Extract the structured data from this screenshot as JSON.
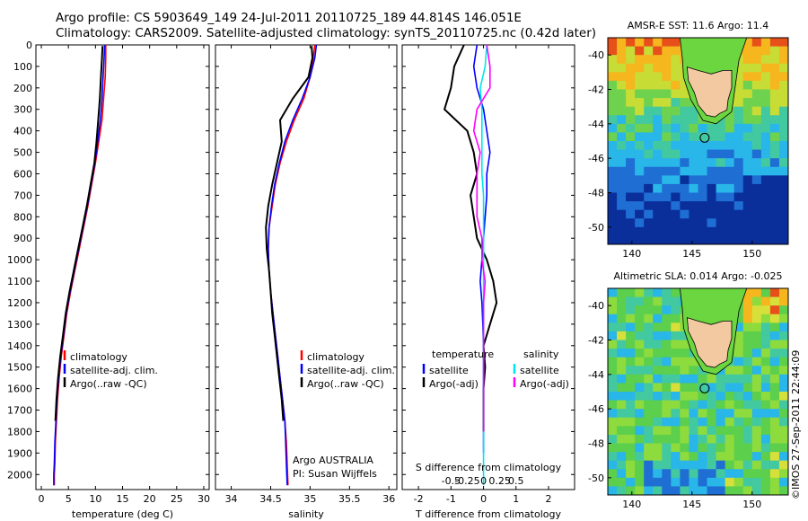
{
  "title_line1": "Argo profile: CS 5903649_149 24-Jul-2011 20110725_189 44.814S 146.051E",
  "title_line2": "Climatology: CARS2009. Satellite-adjusted climatology: synTS_20110725.nc (0.42d later)",
  "side_label": "©IMOS 27-Sep-2011 22:44:09",
  "colors": {
    "climatology": "#ff0000",
    "satellite": "#0000ff",
    "argo": "#000000",
    "salinity_satellite": "#00e5ee",
    "salinity_argo": "#ff00ff"
  },
  "chart_data": [
    {
      "type": "line",
      "panel": "temperature",
      "xlabel": "temperature (deg C)",
      "xlim": [
        -1,
        31
      ],
      "xticks": [
        0,
        5,
        10,
        15,
        20,
        25,
        30
      ],
      "xtick_labels": [
        "0",
        "5",
        "10",
        "15",
        "20",
        "25",
        "30"
      ],
      "ylim": [
        0,
        2070
      ],
      "y_inverted": true,
      "yticks": [
        0,
        100,
        200,
        300,
        400,
        500,
        600,
        700,
        800,
        900,
        1000,
        1100,
        1200,
        1300,
        1400,
        1500,
        1600,
        1700,
        1800,
        1900,
        2000
      ],
      "ytick_labels": [
        "0",
        "100",
        "200",
        "300",
        "400",
        "500",
        "600",
        "700",
        "800",
        "900",
        "1000",
        "1100",
        "1200",
        "1300",
        "1400",
        "1500",
        "1600",
        "1700",
        "1800",
        "1900",
        "2000"
      ],
      "legend": [
        "climatology",
        "satellite-adj. clim.",
        "Argo(..raw -QC)"
      ],
      "legend_position": "lower-center",
      "series": [
        {
          "name": "climatology",
          "color": "#ff0000",
          "x": [
            11.9,
            11.9,
            11.8,
            11.5,
            11.2,
            10.6,
            10.0,
            9.3,
            8.6,
            7.8,
            7.0,
            6.2,
            5.4,
            4.7,
            4.2,
            3.7,
            3.3,
            3.0,
            2.8,
            2.6,
            2.5,
            2.4,
            2.4
          ],
          "y": [
            0,
            60,
            150,
            250,
            350,
            450,
            550,
            650,
            750,
            850,
            950,
            1050,
            1150,
            1250,
            1350,
            1450,
            1550,
            1650,
            1750,
            1850,
            1950,
            2000,
            2050
          ]
        },
        {
          "name": "satellite-adj. clim.",
          "color": "#0000ff",
          "x": [
            11.7,
            11.6,
            11.4,
            11.2,
            10.9,
            10.4,
            9.9,
            9.2,
            8.5,
            7.7,
            6.9,
            6.1,
            5.3,
            4.6,
            4.1,
            3.6,
            3.2,
            2.9,
            2.7,
            2.5,
            2.4,
            2.3,
            2.3
          ],
          "y": [
            0,
            60,
            150,
            250,
            350,
            450,
            550,
            650,
            750,
            850,
            950,
            1050,
            1150,
            1250,
            1350,
            1450,
            1550,
            1650,
            1750,
            1850,
            1950,
            2000,
            2050
          ]
        },
        {
          "name": "Argo(..raw -QC)",
          "color": "#000000",
          "x": [
            11.3,
            11.2,
            11.0,
            10.8,
            10.5,
            10.2,
            9.8,
            9.1,
            8.4,
            7.6,
            6.8,
            6.0,
            5.2,
            4.5,
            4.0,
            3.5,
            3.1,
            2.8,
            2.6
          ],
          "y": [
            5,
            60,
            150,
            250,
            350,
            450,
            550,
            650,
            750,
            850,
            950,
            1050,
            1150,
            1250,
            1350,
            1450,
            1550,
            1650,
            1750
          ]
        }
      ]
    },
    {
      "type": "line",
      "panel": "salinity",
      "xlabel": "salinity",
      "xlim": [
        33.8,
        36.1
      ],
      "xticks": [
        34,
        34.5,
        35,
        35.5,
        36
      ],
      "xtick_labels": [
        "34",
        "34.5",
        "35",
        "35.5",
        "36"
      ],
      "ylim": [
        0,
        2070
      ],
      "y_inverted": true,
      "legend": [
        "climatology",
        "satellite-adj. clim.",
        "Argo(..raw -QC)"
      ],
      "legend_position": "lower-center",
      "annotation_lines": [
        "Argo AUSTRALIA",
        "PI: Susan Wijffels"
      ],
      "series": [
        {
          "name": "climatology",
          "color": "#ff0000",
          "x": [
            35.06,
            35.04,
            35.0,
            34.92,
            34.8,
            34.7,
            34.62,
            34.56,
            34.52,
            34.48,
            34.47,
            34.48,
            34.5,
            34.53,
            34.56,
            34.59,
            34.62,
            34.65,
            34.68,
            34.7,
            34.71,
            34.72
          ],
          "y": [
            0,
            60,
            150,
            250,
            350,
            450,
            550,
            650,
            750,
            850,
            950,
            1050,
            1150,
            1250,
            1350,
            1450,
            1550,
            1650,
            1750,
            1850,
            1950,
            2050
          ]
        },
        {
          "name": "satellite-adj. clim.",
          "color": "#0000ff",
          "x": [
            35.08,
            35.06,
            35.0,
            34.9,
            34.78,
            34.68,
            34.61,
            34.55,
            34.51,
            34.48,
            34.47,
            34.48,
            34.5,
            34.53,
            34.56,
            34.59,
            34.62,
            34.65,
            34.68,
            34.69,
            34.7,
            34.71
          ],
          "y": [
            0,
            60,
            150,
            250,
            350,
            450,
            550,
            650,
            750,
            850,
            950,
            1050,
            1150,
            1250,
            1350,
            1450,
            1550,
            1650,
            1750,
            1850,
            1950,
            2050
          ]
        },
        {
          "name": "Argo(..raw -QC)",
          "color": "#000000",
          "x": [
            35.02,
            35.03,
            34.98,
            34.78,
            34.62,
            34.64,
            34.58,
            34.52,
            34.47,
            34.44,
            34.45,
            34.48,
            34.5,
            34.52,
            34.55,
            34.58,
            34.61,
            34.64,
            34.66
          ],
          "y": [
            5,
            60,
            150,
            250,
            350,
            450,
            550,
            650,
            750,
            850,
            950,
            1050,
            1150,
            1250,
            1350,
            1450,
            1550,
            1650,
            1750
          ]
        }
      ]
    },
    {
      "type": "line",
      "panel": "difference",
      "xlabel": "T difference from climatology",
      "xlabel_top": "S difference from climatology",
      "xlim": [
        -2.5,
        2.8
      ],
      "xticks": [
        -2,
        -1,
        0,
        1,
        2
      ],
      "xtick_labels": [
        "-2",
        "-1",
        "0",
        "1",
        "2"
      ],
      "s_ticks": [
        -0.5,
        -0.25,
        0,
        0.25,
        0.5
      ],
      "s_tick_labels": [
        "-0.5",
        "-0.25",
        "0",
        "0.25",
        "0.5"
      ],
      "ylim": [
        0,
        2070
      ],
      "y_inverted": true,
      "legend_left_header": "temperature",
      "legend_left": [
        "satellite",
        "Argo(-adj)"
      ],
      "legend_right_header": "salinity",
      "legend_right": [
        "satellite",
        "Argo(-adj)"
      ],
      "series": [
        {
          "name": "satellite",
          "color": "#0000ff",
          "x": [
            -0.2,
            -0.3,
            -0.2,
            0.0,
            0.1,
            0.2,
            0.1,
            0.1,
            0.05,
            0.0,
            -0.05,
            -0.1,
            -0.05,
            -0.02,
            0.0,
            0.0,
            0.0,
            0.0,
            0.0,
            0.0
          ],
          "y": [
            0,
            100,
            200,
            300,
            400,
            500,
            600,
            700,
            800,
            900,
            1000,
            1100,
            1200,
            1300,
            1400,
            1500,
            1600,
            1700,
            1800,
            1900
          ]
        },
        {
          "name": "Argo(-adj)",
          "color": "#000000",
          "x": [
            -0.6,
            -0.9,
            -1.0,
            -1.2,
            -0.5,
            -0.3,
            -0.2,
            -0.4,
            -0.3,
            -0.2,
            0.1,
            0.3,
            0.4,
            0.2,
            0.0,
            0.05,
            0.0,
            0.0,
            0.0
          ],
          "y": [
            0,
            100,
            200,
            300,
            400,
            500,
            600,
            700,
            800,
            900,
            1000,
            1100,
            1200,
            1300,
            1400,
            1500,
            1600,
            1700,
            1800
          ]
        },
        {
          "name": "satellite",
          "color": "#00e5ee",
          "x": [
            0.1,
            0.05,
            -0.1,
            -0.05,
            -0.05,
            -0.05,
            -0.05,
            0.0,
            0.0,
            0.0,
            0.0,
            0.0,
            0.0,
            0.0,
            0.0,
            0.0,
            0.0,
            0.0,
            0.0,
            0.0
          ],
          "y": [
            0,
            100,
            200,
            300,
            400,
            500,
            600,
            700,
            800,
            900,
            1000,
            1100,
            1200,
            1300,
            1400,
            1500,
            1600,
            1700,
            1800,
            2050
          ]
        },
        {
          "name": "Argo(-adj)",
          "color": "#ff00ff",
          "x": [
            0.1,
            0.2,
            0.2,
            -0.2,
            -0.3,
            -0.1,
            -0.2,
            -0.2,
            -0.2,
            -0.05,
            -0.05,
            0.05,
            0.0,
            0.0,
            0.0,
            0.0,
            0.0,
            0.0,
            0.0
          ],
          "y": [
            0,
            100,
            200,
            300,
            400,
            500,
            600,
            700,
            800,
            900,
            1000,
            1100,
            1200,
            1300,
            1400,
            1500,
            1600,
            1700,
            1800
          ]
        }
      ]
    },
    {
      "type": "heatmap",
      "panel": "map-sst",
      "title": "AMSR-E SST: 11.6  Argo: 11.4",
      "xlim": [
        138,
        153
      ],
      "ylim": [
        -51,
        -39
      ],
      "xticks": [
        140,
        145,
        150
      ],
      "xtick_labels": [
        "140",
        "145",
        "150"
      ],
      "yticks": [
        -40,
        -42,
        -44,
        -46,
        -48,
        -50
      ],
      "ytick_labels": [
        "-40",
        "-42",
        "-44",
        "-46",
        "-48",
        "-50"
      ],
      "profile_marker": {
        "lon": 146.05,
        "lat": -44.81
      }
    },
    {
      "type": "heatmap",
      "panel": "map-sla",
      "title": "Altimetric SLA: 0.014  Argo: -0.025",
      "xlim": [
        138,
        153
      ],
      "ylim": [
        -51,
        -39
      ],
      "xticks": [
        140,
        145,
        150
      ],
      "xtick_labels": [
        "140",
        "145",
        "150"
      ],
      "yticks": [
        -40,
        -42,
        -44,
        -46,
        -48,
        -50
      ],
      "ytick_labels": [
        "-40",
        "-42",
        "-44",
        "-46",
        "-48",
        "-50"
      ],
      "profile_marker": {
        "lon": 146.05,
        "lat": -44.81
      }
    }
  ]
}
